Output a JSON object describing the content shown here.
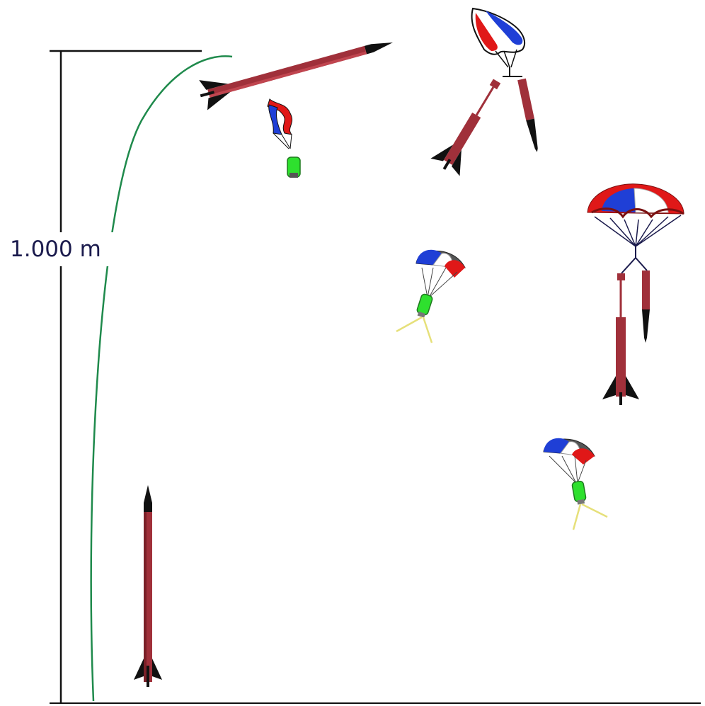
{
  "diagram": {
    "height_label": "1.000 m"
  },
  "colors": {
    "rocket_body": "#a0303a",
    "rocket_dark": "#5a1a20",
    "fins_nose": "#111111",
    "trajectory": "#1f8a4c",
    "scale_line": "#111111",
    "payload": "#2ee02e",
    "payload_dark": "#1f7a1f",
    "chute_red": "#e01818",
    "chute_blue": "#1f3fd6",
    "chute_white": "#ffffff",
    "chute_gray": "#9a9a9a",
    "shroud_lines": "#1b1b4d",
    "legs": "#e6e07a",
    "label_text": "#1b1b4d"
  },
  "icons": [
    "rocket-icon",
    "parachute-icon",
    "payload-capsule-icon",
    "streamer-icon"
  ]
}
